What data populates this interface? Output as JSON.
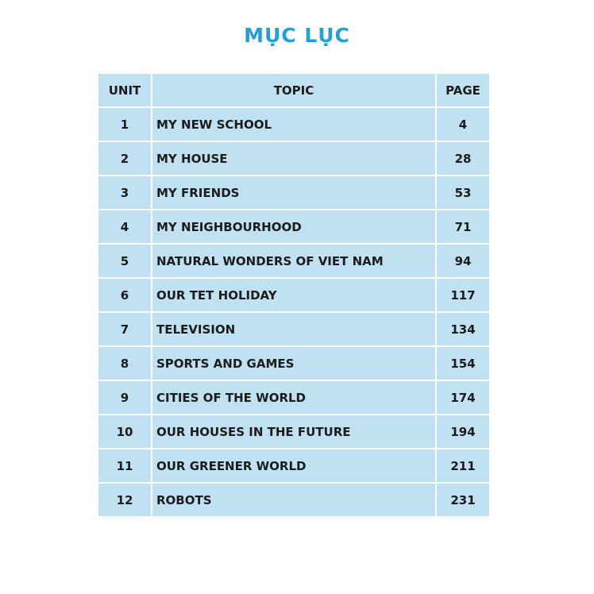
{
  "title": "MỤC LỤC",
  "headers": {
    "unit": "UNIT",
    "topic": "TOPIC",
    "page": "PAGE"
  },
  "colors": {
    "title": "#1ea2dc",
    "table_bg": "#bfe1f1"
  },
  "rows": [
    {
      "unit": "1",
      "topic": "MY NEW SCHOOL",
      "page": "4"
    },
    {
      "unit": "2",
      "topic": "MY HOUSE",
      "page": "28"
    },
    {
      "unit": "3",
      "topic": "MY FRIENDS",
      "page": "53"
    },
    {
      "unit": "4",
      "topic": "MY NEIGHBOURHOOD",
      "page": "71"
    },
    {
      "unit": "5",
      "topic": "NATURAL WONDERS OF VIET NAM",
      "page": "94"
    },
    {
      "unit": "6",
      "topic": "OUR TET HOLIDAY",
      "page": "117"
    },
    {
      "unit": "7",
      "topic": "TELEVISION",
      "page": "134"
    },
    {
      "unit": "8",
      "topic": "SPORTS AND GAMES",
      "page": "154"
    },
    {
      "unit": "9",
      "topic": "CITIES OF THE WORLD",
      "page": "174"
    },
    {
      "unit": "10",
      "topic": "OUR HOUSES IN THE FUTURE",
      "page": "194"
    },
    {
      "unit": "11",
      "topic": "OUR GREENER WORLD",
      "page": "211"
    },
    {
      "unit": "12",
      "topic": "ROBOTS",
      "page": "231"
    }
  ]
}
